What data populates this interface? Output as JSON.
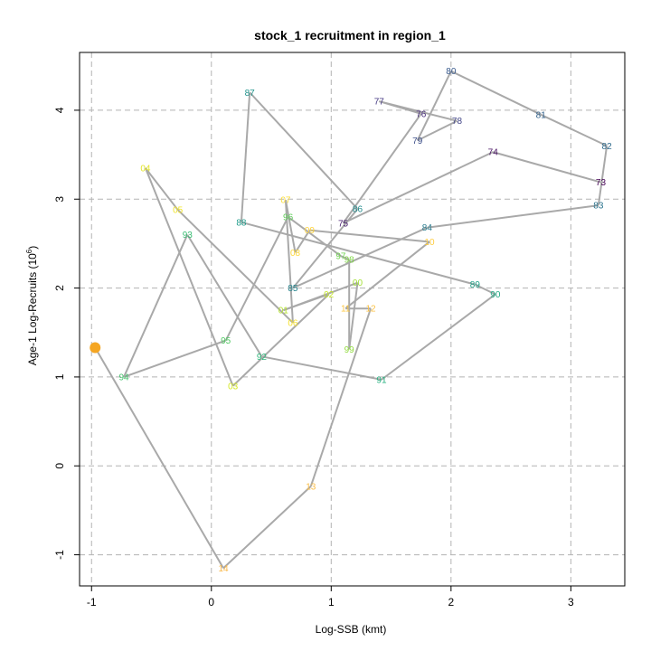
{
  "chart_data": {
    "type": "line",
    "title": "stock_1 recruitment in region_1",
    "xlabel": "Log-SSB (kmt)",
    "ylabel_main": "Age-1 Log-Recruits (10",
    "ylabel_sup": "6",
    "ylabel_end": ")",
    "xlim": [
      -1.1,
      3.45
    ],
    "ylim": [
      -1.35,
      4.65
    ],
    "xticks": [
      -1,
      0,
      1,
      2,
      3
    ],
    "yticks": [
      -1,
      0,
      1,
      2,
      3,
      4
    ],
    "grid": true,
    "line_color": "#a9a9a9",
    "series": [
      {
        "points": [
          {
            "label": "73",
            "x": 3.25,
            "y": 3.19,
            "color": "#440154"
          },
          {
            "label": "74",
            "x": 2.35,
            "y": 3.53,
            "color": "#471063"
          },
          {
            "label": "75",
            "x": 1.1,
            "y": 2.73,
            "color": "#481e70"
          },
          {
            "label": "76",
            "x": 1.75,
            "y": 3.96,
            "color": "#472c7a"
          },
          {
            "label": "77",
            "x": 1.4,
            "y": 4.1,
            "color": "#443983"
          },
          {
            "label": "78",
            "x": 2.05,
            "y": 3.88,
            "color": "#414487"
          },
          {
            "label": "79",
            "x": 1.72,
            "y": 3.66,
            "color": "#3d4f8a"
          },
          {
            "label": "80",
            "x": 2.0,
            "y": 4.44,
            "color": "#38598c"
          },
          {
            "label": "81",
            "x": 2.75,
            "y": 3.95,
            "color": "#34638d"
          },
          {
            "label": "82",
            "x": 3.3,
            "y": 3.6,
            "color": "#306c8e"
          },
          {
            "label": "83",
            "x": 3.23,
            "y": 2.93,
            "color": "#2c748e"
          },
          {
            "label": "84",
            "x": 1.8,
            "y": 2.68,
            "color": "#297c8e"
          },
          {
            "label": "85",
            "x": 0.68,
            "y": 2.0,
            "color": "#26858e"
          },
          {
            "label": "86",
            "x": 1.22,
            "y": 2.89,
            "color": "#238c8d"
          },
          {
            "label": "87",
            "x": 0.32,
            "y": 4.2,
            "color": "#21948c"
          },
          {
            "label": "88",
            "x": 0.25,
            "y": 2.74,
            "color": "#1f9b8a"
          },
          {
            "label": "89",
            "x": 2.2,
            "y": 2.04,
            "color": "#1fa287"
          },
          {
            "label": "90",
            "x": 2.37,
            "y": 1.93,
            "color": "#21a984"
          },
          {
            "label": "91",
            "x": 1.42,
            "y": 0.97,
            "color": "#26b07f"
          },
          {
            "label": "92",
            "x": 0.42,
            "y": 1.23,
            "color": "#2eb77a"
          },
          {
            "label": "93",
            "x": -0.2,
            "y": 2.6,
            "color": "#39bd73"
          },
          {
            "label": "94",
            "x": -0.73,
            "y": 1.0,
            "color": "#45c36c"
          },
          {
            "label": "95",
            "x": 0.12,
            "y": 1.41,
            "color": "#52c964"
          },
          {
            "label": "96",
            "x": 0.64,
            "y": 2.8,
            "color": "#61ce5b"
          },
          {
            "label": "97",
            "x": 1.08,
            "y": 2.36,
            "color": "#70d351"
          },
          {
            "label": "98",
            "x": 1.15,
            "y": 2.32,
            "color": "#80d747"
          },
          {
            "label": "99",
            "x": 1.15,
            "y": 1.31,
            "color": "#91db3e"
          },
          {
            "label": "00",
            "x": 1.22,
            "y": 2.06,
            "color": "#a2df34"
          },
          {
            "label": "01",
            "x": 0.6,
            "y": 1.75,
            "color": "#b3e22c"
          },
          {
            "label": "02",
            "x": 0.98,
            "y": 1.93,
            "color": "#c4e526"
          },
          {
            "label": "03",
            "x": 0.18,
            "y": 0.9,
            "color": "#d4e723"
          },
          {
            "label": "04",
            "x": -0.55,
            "y": 3.35,
            "color": "#e4e625"
          },
          {
            "label": "05",
            "x": -0.28,
            "y": 2.88,
            "color": "#f0e42a"
          },
          {
            "label": "06",
            "x": 0.68,
            "y": 1.61,
            "color": "#f6e130"
          },
          {
            "label": "07",
            "x": 0.62,
            "y": 2.99,
            "color": "#fbdd36"
          },
          {
            "label": "08",
            "x": 0.7,
            "y": 2.4,
            "color": "#fdd83b"
          },
          {
            "label": "09",
            "x": 0.82,
            "y": 2.65,
            "color": "#fed33f"
          },
          {
            "label": "10",
            "x": 1.82,
            "y": 2.52,
            "color": "#fecd42"
          },
          {
            "label": "11",
            "x": 1.12,
            "y": 1.77,
            "color": "#fdc844"
          },
          {
            "label": "12",
            "x": 1.33,
            "y": 1.77,
            "color": "#fcc245"
          },
          {
            "label": "13",
            "x": 0.83,
            "y": -0.23,
            "color": "#fbbd45"
          },
          {
            "label": "14",
            "x": 0.1,
            "y": -1.15,
            "color": "#fab745"
          },
          {
            "label": "",
            "x": -0.97,
            "y": 1.33,
            "color": "#f5a623"
          }
        ]
      }
    ]
  }
}
